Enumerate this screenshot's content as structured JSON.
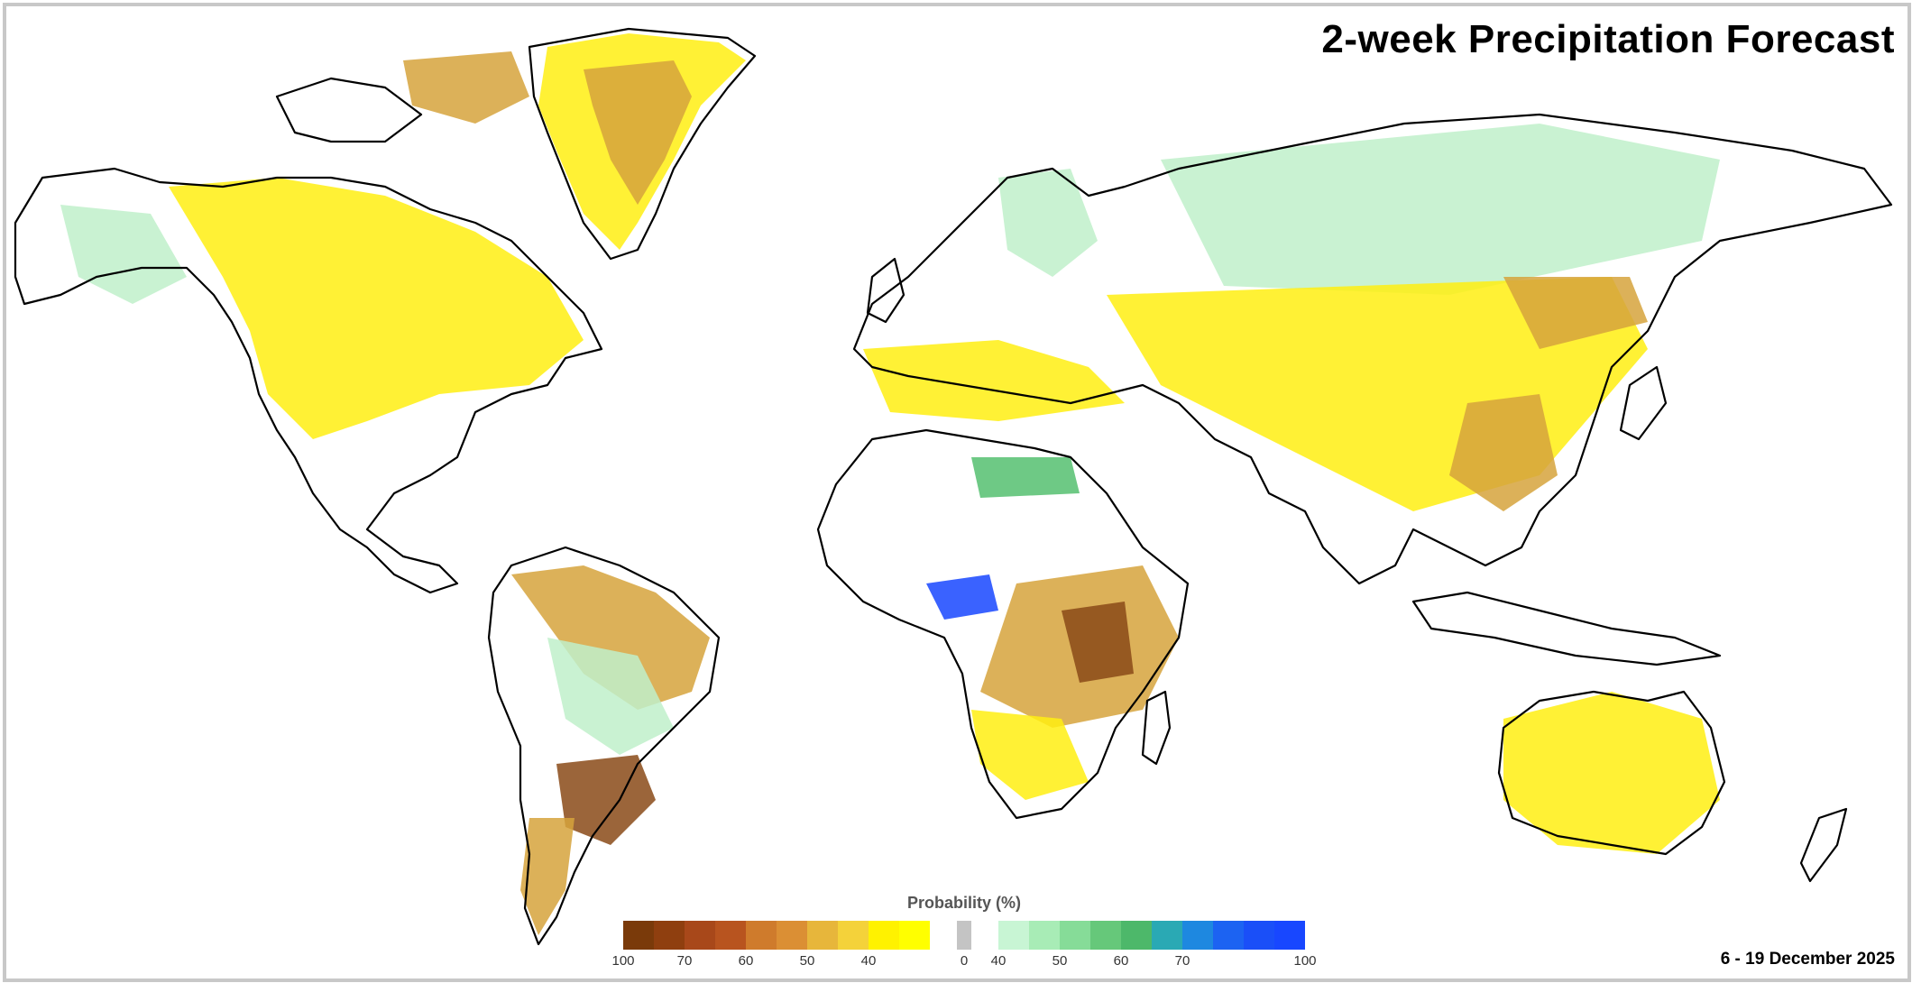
{
  "title": "2-week Precipitation Forecast",
  "date_range": "6 - 19 December 2025",
  "legend": {
    "title": "Probability (%)",
    "dry_ticks": [
      "100",
      "70",
      "60",
      "50",
      "40"
    ],
    "neutral_tick": "0",
    "wet_ticks": [
      "40",
      "50",
      "60",
      "70",
      "100"
    ],
    "dry_colors": [
      "#7a3a0a",
      "#8f3f0f",
      "#a8481a",
      "#b8541f",
      "#cf7b2c",
      "#db8f34",
      "#e7b63b",
      "#f4d23a",
      "#fff200",
      "#ffff00"
    ],
    "neutral_color": "#c4c4c4",
    "wet_colors": [
      "#c8f5d4",
      "#a8ecb6",
      "#86dc98",
      "#66c87a",
      "#4db86a",
      "#2aa9b4",
      "#1e88e0",
      "#1c63f2",
      "#1a4ff8",
      "#1847ff"
    ]
  },
  "colors": {
    "dry_light": "#ffef12",
    "dry_mid": "#d6a33c",
    "dry_dark": "#8a4a18",
    "wet_light": "#bff0ca",
    "wet_mid": "#55c070",
    "wet_dark": "#1846ff",
    "neutral": "#c4c4c4",
    "coast": "#000000"
  }
}
